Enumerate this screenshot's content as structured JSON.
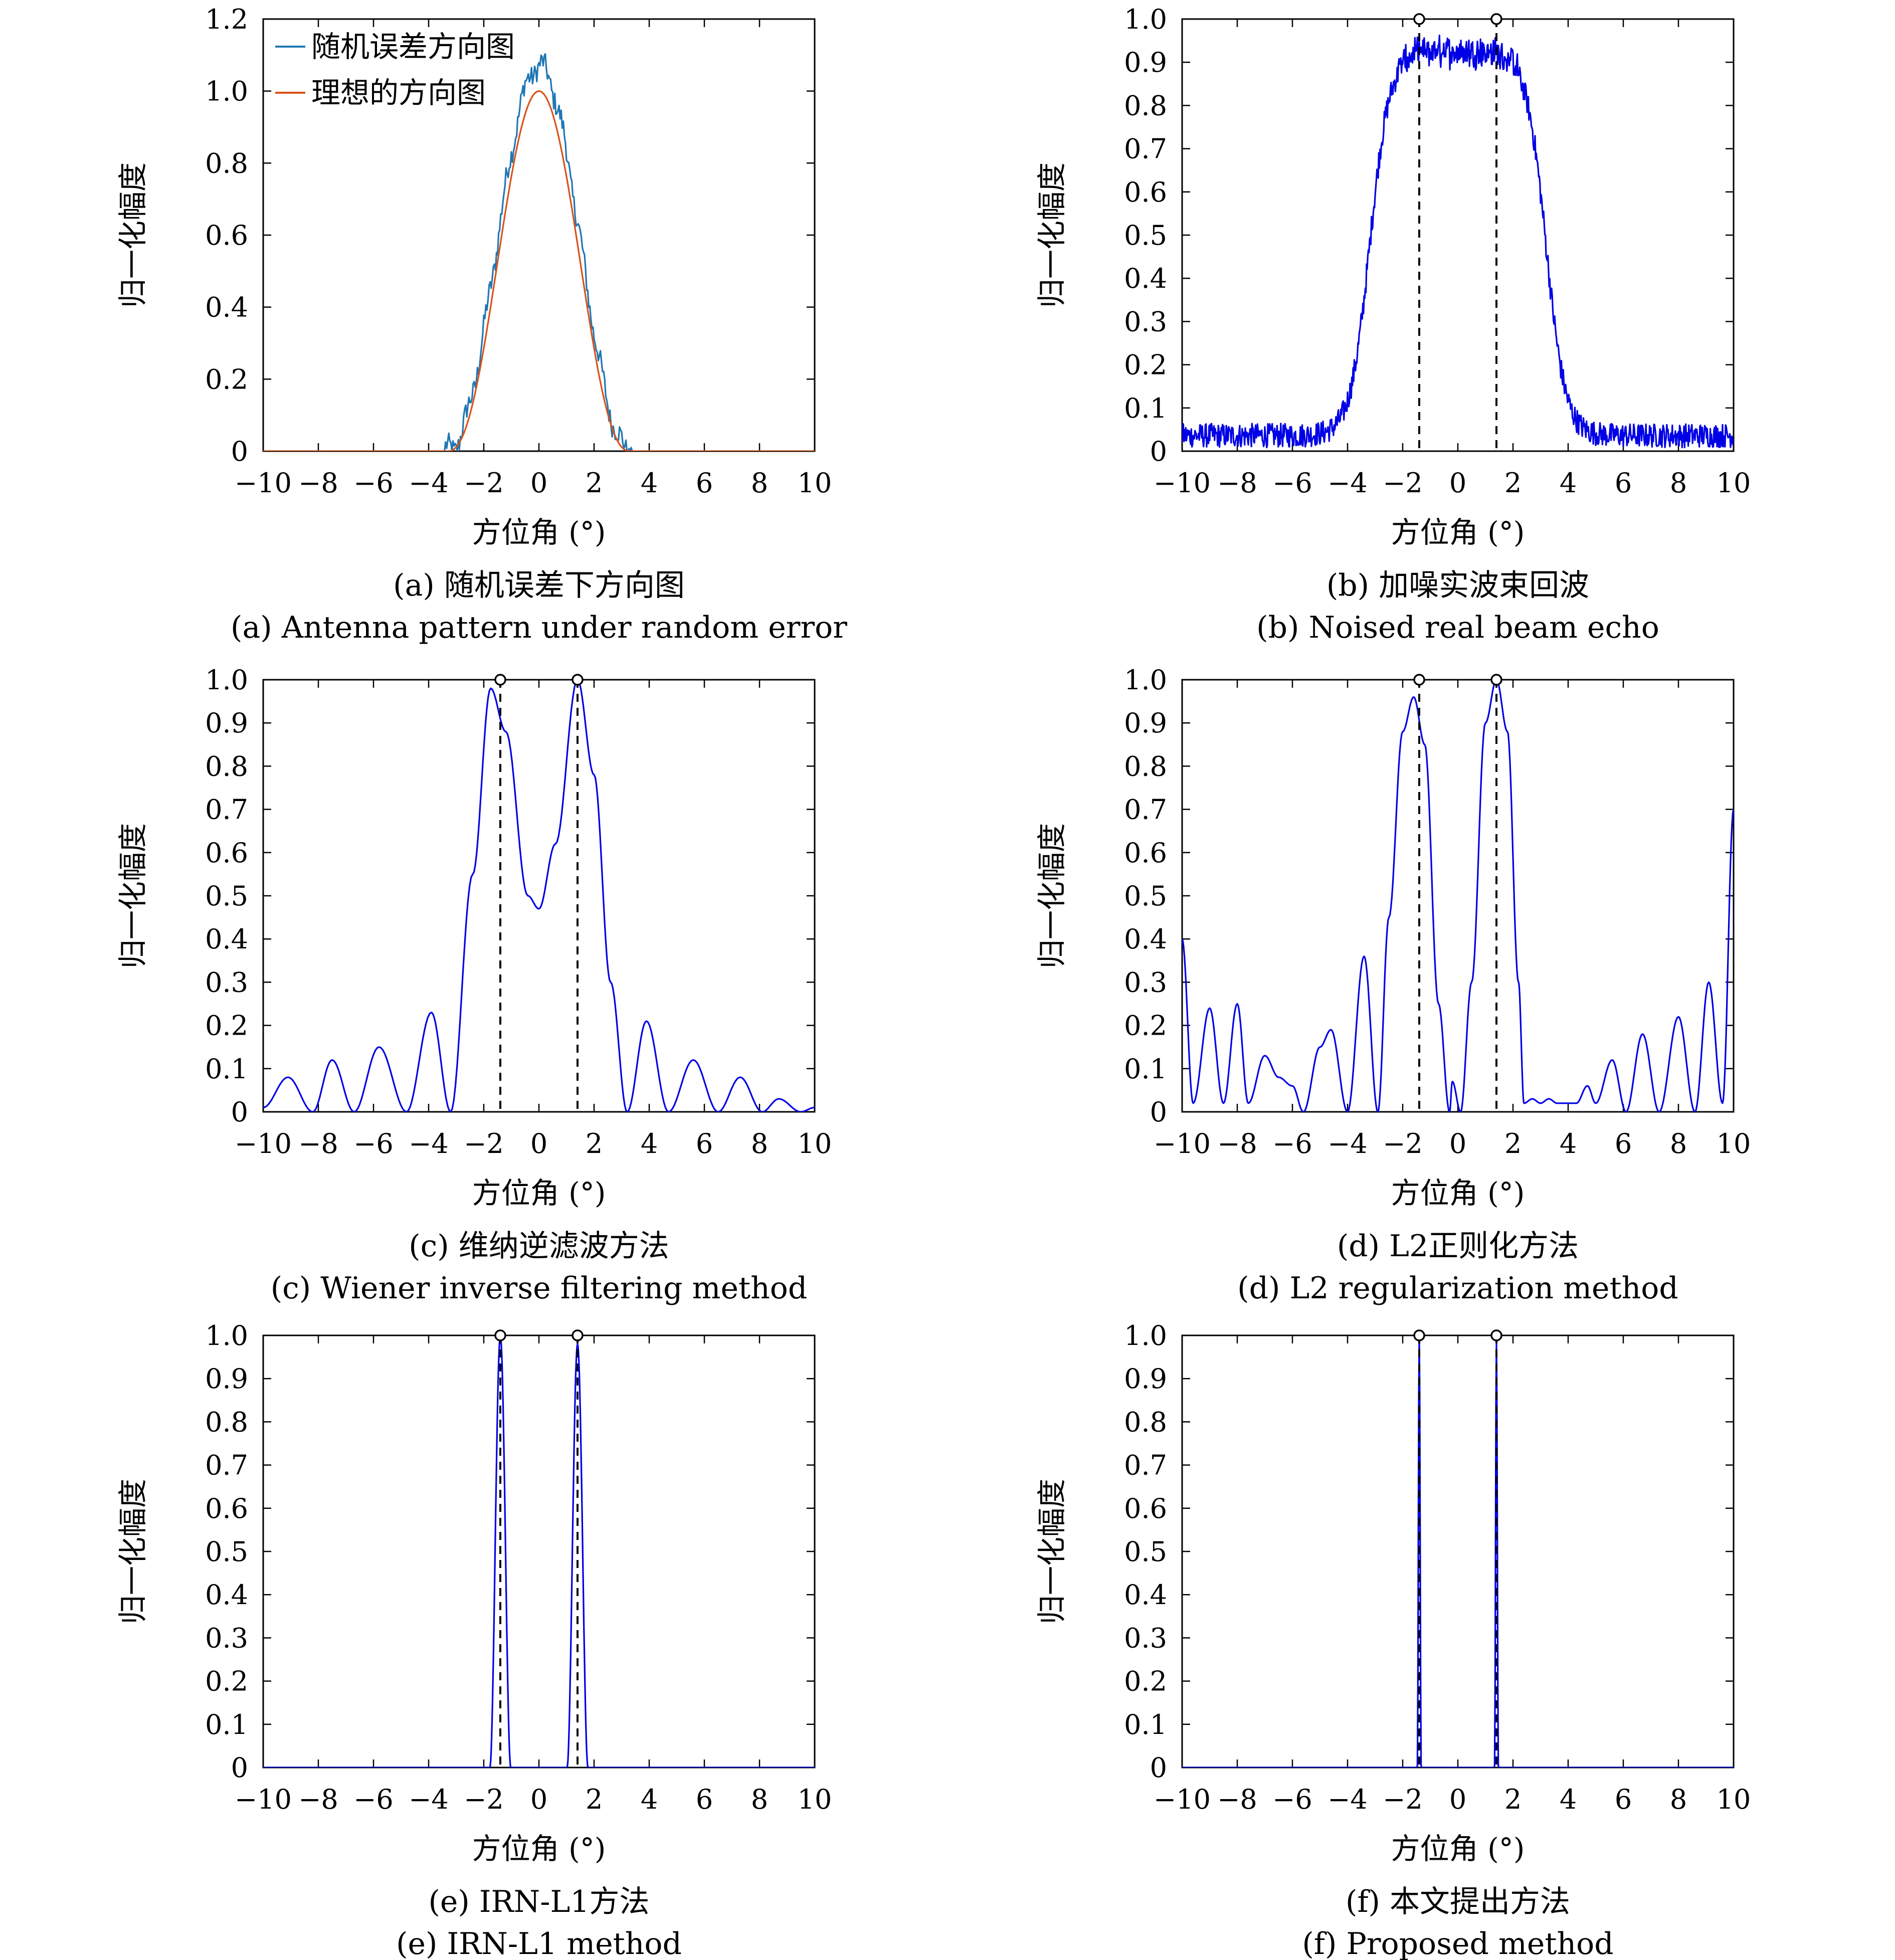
{
  "figure": {
    "xlabel": "方位角 (°)",
    "ylabel": "归一化幅度",
    "xticks": [
      "−10",
      "−8",
      "−6",
      "−4",
      "−2",
      "0",
      "2",
      "4",
      "6",
      "8",
      "10"
    ]
  },
  "chart_data": [
    {
      "id": "a",
      "type": "line",
      "caption_cn": "(a) 随机误差下方向图",
      "caption_en": "(a) Antenna pattern under random error",
      "xlabel": "方位角 (°)",
      "ylabel": "归一化幅度",
      "xlim": [
        -10,
        10
      ],
      "ylim": [
        0,
        1.2
      ],
      "yticks": [
        "0",
        "0.2",
        "0.4",
        "0.6",
        "0.8",
        "1.0",
        "1.2"
      ],
      "legend": "top-left",
      "series": [
        {
          "name": "随机误差方向图",
          "color": "#1f77b4",
          "kind": "noisy_gauss",
          "center": 0,
          "halfwidth": 3.4,
          "peak": 1.07
        },
        {
          "name": "理想的方向图",
          "color": "#d95319",
          "kind": "ideal_gauss",
          "center": 0,
          "halfwidth": 3.3,
          "peak": 1.0
        }
      ]
    },
    {
      "id": "b",
      "type": "line",
      "caption_cn": "(b) 加噪实波束回波",
      "caption_en": "(b) Noised real beam echo",
      "xlabel": "方位角 (°)",
      "ylabel": "归一化幅度",
      "xlim": [
        -10,
        10
      ],
      "ylim": [
        0,
        1.0
      ],
      "yticks": [
        "0",
        "0.1",
        "0.2",
        "0.3",
        "0.4",
        "0.5",
        "0.6",
        "0.7",
        "0.8",
        "0.9",
        "1.0"
      ],
      "targets": [
        -1.4,
        1.4
      ],
      "series": [
        {
          "color": "#0000e6",
          "kind": "noisy_plateau",
          "top": 0.88,
          "edge_mid": 3.2,
          "noise": 0.04
        }
      ]
    },
    {
      "id": "c",
      "type": "line",
      "caption_cn": "(c) 维纳逆滤波方法",
      "caption_en": "(c) Wiener inverse filtering method",
      "xlabel": "方位角 (°)",
      "ylabel": "归一化幅度",
      "xlim": [
        -10,
        10
      ],
      "ylim": [
        0,
        1.0
      ],
      "yticks": [
        "0",
        "0.1",
        "0.2",
        "0.3",
        "0.4",
        "0.5",
        "0.6",
        "0.7",
        "0.8",
        "0.9",
        "1.0"
      ],
      "targets": [
        -1.4,
        1.4
      ],
      "series": [
        {
          "color": "#0000e6",
          "kind": "points",
          "points": [
            [
              -10,
              0.01
            ],
            [
              -9.1,
              0.08
            ],
            [
              -8.2,
              0.0
            ],
            [
              -7.5,
              0.12
            ],
            [
              -6.7,
              0.0
            ],
            [
              -5.8,
              0.15
            ],
            [
              -4.8,
              0.0
            ],
            [
              -3.9,
              0.23
            ],
            [
              -3.2,
              0.0
            ],
            [
              -2.4,
              0.55
            ],
            [
              -1.75,
              0.98
            ],
            [
              -1.2,
              0.88
            ],
            [
              -0.4,
              0.5
            ],
            [
              0,
              0.47
            ],
            [
              0.6,
              0.62
            ],
            [
              1.4,
              1.0
            ],
            [
              2.0,
              0.78
            ],
            [
              2.6,
              0.3
            ],
            [
              3.2,
              0.0
            ],
            [
              3.9,
              0.21
            ],
            [
              4.7,
              0.0
            ],
            [
              5.6,
              0.12
            ],
            [
              6.5,
              0.0
            ],
            [
              7.3,
              0.08
            ],
            [
              8.1,
              0.0
            ],
            [
              8.7,
              0.03
            ],
            [
              9.5,
              0.0
            ],
            [
              10,
              0.01
            ]
          ]
        }
      ]
    },
    {
      "id": "d",
      "type": "line",
      "caption_cn": "(d) L2正则化方法",
      "caption_en": "(d) L2 regularization method",
      "xlabel": "方位角 (°)",
      "ylabel": "归一化幅度",
      "xlim": [
        -10,
        10
      ],
      "ylim": [
        0,
        1.0
      ],
      "yticks": [
        "0",
        "0.1",
        "0.2",
        "0.3",
        "0.4",
        "0.5",
        "0.6",
        "0.7",
        "0.8",
        "0.9",
        "1.0"
      ],
      "targets": [
        -1.4,
        1.4
      ],
      "series": [
        {
          "color": "#0000e6",
          "kind": "points",
          "points": [
            [
              -10,
              0.4
            ],
            [
              -9.6,
              0.02
            ],
            [
              -9.0,
              0.24
            ],
            [
              -8.5,
              0.02
            ],
            [
              -8.0,
              0.25
            ],
            [
              -7.6,
              0.02
            ],
            [
              -7.0,
              0.13
            ],
            [
              -6.5,
              0.08
            ],
            [
              -6.0,
              0.06
            ],
            [
              -5.6,
              0.0
            ],
            [
              -5.0,
              0.15
            ],
            [
              -4.6,
              0.19
            ],
            [
              -4.0,
              0.0
            ],
            [
              -3.4,
              0.36
            ],
            [
              -2.9,
              0.0
            ],
            [
              -2.5,
              0.45
            ],
            [
              -2.0,
              0.88
            ],
            [
              -1.6,
              0.96
            ],
            [
              -1.2,
              0.85
            ],
            [
              -0.7,
              0.25
            ],
            [
              -0.3,
              0.0
            ],
            [
              -0.2,
              0.07
            ],
            [
              0.1,
              0.0
            ],
            [
              0.5,
              0.3
            ],
            [
              1.0,
              0.9
            ],
            [
              1.4,
              1.0
            ],
            [
              1.8,
              0.88
            ],
            [
              2.2,
              0.3
            ],
            [
              2.4,
              0.02
            ],
            [
              2.7,
              0.03
            ],
            [
              3.0,
              0.02
            ],
            [
              3.3,
              0.03
            ],
            [
              3.6,
              0.02
            ],
            [
              4.0,
              0.02
            ],
            [
              4.3,
              0.02
            ],
            [
              4.7,
              0.06
            ],
            [
              5.0,
              0.02
            ],
            [
              5.6,
              0.12
            ],
            [
              6.1,
              0.0
            ],
            [
              6.7,
              0.18
            ],
            [
              7.3,
              0.0
            ],
            [
              8.0,
              0.22
            ],
            [
              8.6,
              0.0
            ],
            [
              9.1,
              0.3
            ],
            [
              9.6,
              0.02
            ],
            [
              10,
              0.7
            ]
          ]
        }
      ]
    },
    {
      "id": "e",
      "type": "line",
      "caption_cn": "(e) IRN-L1方法",
      "caption_en": "(e) IRN-L1 method",
      "xlabel": "方位角 (°)",
      "ylabel": "归一化幅度",
      "xlim": [
        -10,
        10
      ],
      "ylim": [
        0,
        1.0
      ],
      "yticks": [
        "0",
        "0.1",
        "0.2",
        "0.3",
        "0.4",
        "0.5",
        "0.6",
        "0.7",
        "0.8",
        "0.9",
        "1.0"
      ],
      "targets": [
        -1.4,
        1.4
      ],
      "series": [
        {
          "color": "#0000e6",
          "kind": "peaks",
          "peaks": [
            [
              -1.4,
              1.0,
              0.38
            ],
            [
              1.4,
              0.98,
              0.38
            ]
          ]
        }
      ]
    },
    {
      "id": "f",
      "type": "line",
      "caption_cn": "(f) 本文提出方法",
      "caption_en": "(f) Proposed method",
      "xlabel": "方位角 (°)",
      "ylabel": "归一化幅度",
      "xlim": [
        -10,
        10
      ],
      "ylim": [
        0,
        1.0
      ],
      "yticks": [
        "0",
        "0.1",
        "0.2",
        "0.3",
        "0.4",
        "0.5",
        "0.6",
        "0.7",
        "0.8",
        "0.9",
        "1.0"
      ],
      "targets": [
        -1.4,
        1.4
      ],
      "series": [
        {
          "color": "#0000e6",
          "kind": "peaks",
          "peaks": [
            [
              -1.4,
              1.0,
              0.07
            ],
            [
              1.4,
              0.98,
              0.07
            ]
          ]
        }
      ]
    }
  ]
}
